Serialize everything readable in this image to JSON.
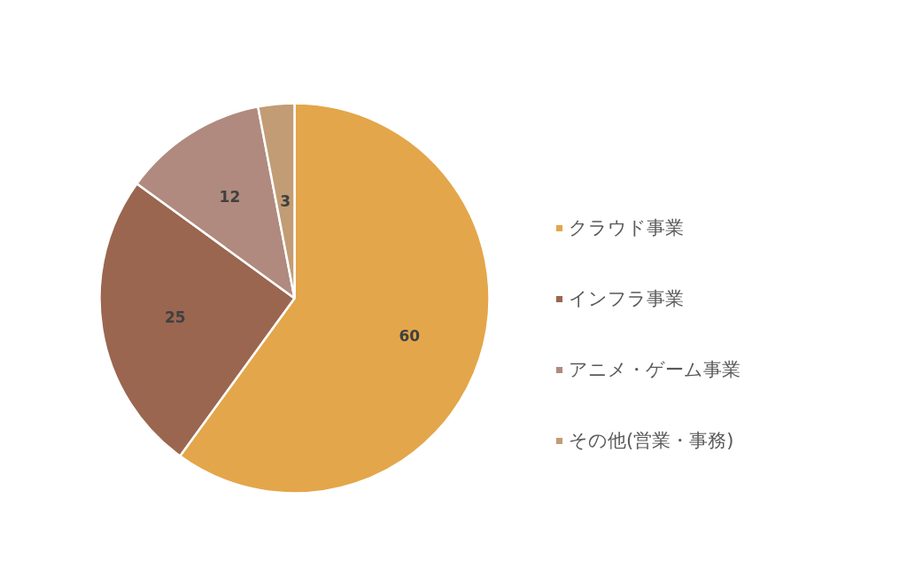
{
  "chart_data": {
    "type": "pie",
    "categories": [
      "クラウド事業",
      "インフラ事業",
      "アニメ・ゲーム事業",
      "その他(営業・事務)"
    ],
    "values": [
      60,
      25,
      12,
      3
    ],
    "colors": [
      "#e3a64a",
      "#9a6650",
      "#b08a7e",
      "#c19c74"
    ],
    "data_labels": true,
    "legend": "right"
  }
}
